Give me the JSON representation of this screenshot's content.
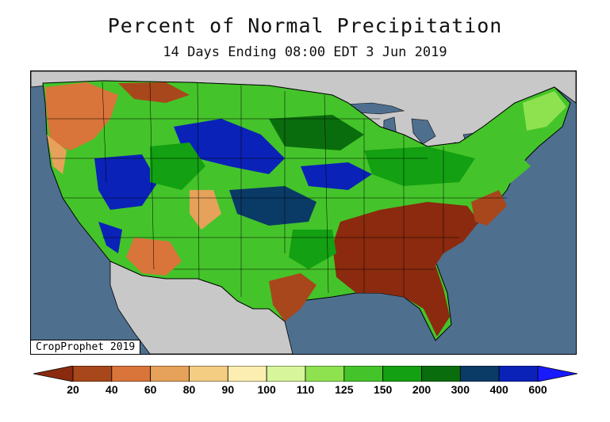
{
  "title": "Percent of Normal Precipitation",
  "subtitle": "14 Days Ending 08:00 EDT 3 Jun 2019",
  "credit": "CropProphet 2019",
  "map": {
    "region": "Contiguous United States",
    "variable": "Percent of normal precipitation",
    "period_days": 14,
    "ocean_color": "#4f6f8f",
    "land_outside_color": "#c8c8c8"
  },
  "legend": {
    "labels": [
      "20",
      "40",
      "60",
      "80",
      "90",
      "100",
      "110",
      "125",
      "150",
      "200",
      "300",
      "400",
      "600"
    ],
    "colors": [
      "#8b2a0e",
      "#a8471b",
      "#d9743a",
      "#e6a25a",
      "#f4cc82",
      "#fbeeb0",
      "#d7f59b",
      "#8ee24f",
      "#44c42a",
      "#13a012",
      "#0a6d0d",
      "#0a3a66",
      "#0a22b8",
      "#1a1aff"
    ]
  }
}
